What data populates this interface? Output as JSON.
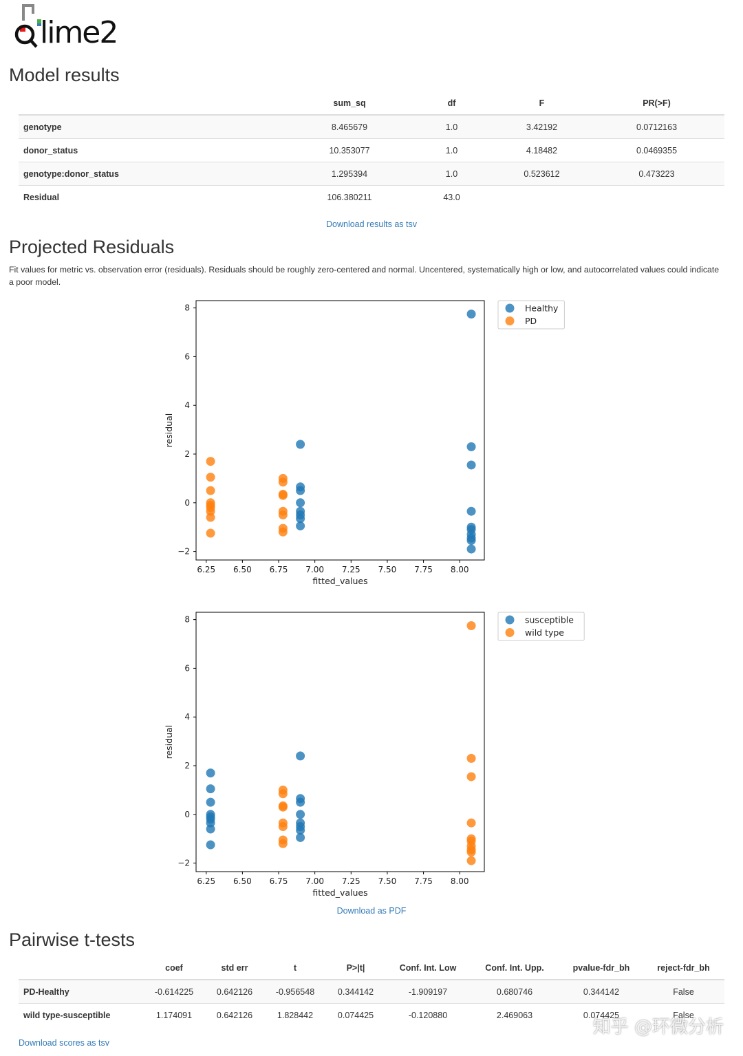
{
  "logo": {
    "text": "qiime2",
    "colors": [
      "#e41a1c",
      "#4daf4a",
      "#377eb8"
    ]
  },
  "model_results": {
    "title": "Model results",
    "columns": [
      "",
      "sum_sq",
      "df",
      "F",
      "PR(>F)"
    ],
    "rows": [
      {
        "label": "genotype",
        "cells": [
          "8.465679",
          "1.0",
          "3.42192",
          "0.0712163"
        ]
      },
      {
        "label": "donor_status",
        "cells": [
          "10.353077",
          "1.0",
          "4.18482",
          "0.0469355"
        ]
      },
      {
        "label": "genotype:donor_status",
        "cells": [
          "1.295394",
          "1.0",
          "0.523612",
          "0.473223"
        ]
      },
      {
        "label": "Residual",
        "cells": [
          "106.380211",
          "43.0",
          "",
          ""
        ]
      }
    ],
    "download_label": "Download results as tsv"
  },
  "projected_residuals": {
    "title": "Projected Residuals",
    "description": "Fit values for metric vs. observation error (residuals). Residuals should be roughly zero-centered and normal. Uncentered, systematically high or low, and autocorrelated values could indicate a poor model.",
    "download_label": "Download as PDF"
  },
  "chart_data": [
    {
      "type": "scatter",
      "xlabel": "fitted_values",
      "ylabel": "residual",
      "xlim": [
        6.18,
        8.17
      ],
      "ylim": [
        -2.35,
        8.3
      ],
      "xticks": [
        6.25,
        6.5,
        6.75,
        7.0,
        7.25,
        7.5,
        7.75,
        8.0
      ],
      "xtick_labels": [
        "6.25",
        "6.50",
        "6.75",
        "7.00",
        "7.25",
        "7.50",
        "7.75",
        "8.00"
      ],
      "yticks": [
        -2,
        0,
        2,
        4,
        6,
        8
      ],
      "ytick_labels": [
        "−2",
        "0",
        "2",
        "4",
        "6",
        "8"
      ],
      "legend_position": "outside-top-right",
      "series": [
        {
          "name": "Healthy",
          "color": "#1f77b4",
          "points": [
            [
              6.9,
              2.4
            ],
            [
              6.9,
              0.65
            ],
            [
              6.9,
              0.5
            ],
            [
              6.9,
              0.0
            ],
            [
              6.9,
              -0.35
            ],
            [
              6.9,
              -0.5
            ],
            [
              6.9,
              -0.65
            ],
            [
              6.9,
              -0.95
            ],
            [
              8.08,
              7.75
            ],
            [
              8.08,
              2.3
            ],
            [
              8.08,
              1.55
            ],
            [
              8.08,
              -0.35
            ],
            [
              8.08,
              -1.0
            ],
            [
              8.08,
              -1.1
            ],
            [
              8.08,
              -1.3
            ],
            [
              8.08,
              -1.45
            ],
            [
              8.08,
              -1.55
            ],
            [
              8.08,
              -1.9
            ]
          ]
        },
        {
          "name": "PD",
          "color": "#ff7f0e",
          "points": [
            [
              6.28,
              1.7
            ],
            [
              6.28,
              1.05
            ],
            [
              6.28,
              0.5
            ],
            [
              6.28,
              0.0
            ],
            [
              6.28,
              -0.1
            ],
            [
              6.28,
              -0.2
            ],
            [
              6.28,
              -0.35
            ],
            [
              6.28,
              -0.6
            ],
            [
              6.28,
              -1.25
            ],
            [
              6.78,
              1.0
            ],
            [
              6.78,
              0.85
            ],
            [
              6.78,
              0.35
            ],
            [
              6.78,
              0.3
            ],
            [
              6.78,
              -0.35
            ],
            [
              6.78,
              -0.5
            ],
            [
              6.78,
              -1.05
            ],
            [
              6.78,
              -1.2
            ]
          ]
        }
      ]
    },
    {
      "type": "scatter",
      "xlabel": "fitted_values",
      "ylabel": "residual",
      "xlim": [
        6.18,
        8.17
      ],
      "ylim": [
        -2.35,
        8.3
      ],
      "xticks": [
        6.25,
        6.5,
        6.75,
        7.0,
        7.25,
        7.5,
        7.75,
        8.0
      ],
      "xtick_labels": [
        "6.25",
        "6.50",
        "6.75",
        "7.00",
        "7.25",
        "7.50",
        "7.75",
        "8.00"
      ],
      "yticks": [
        -2,
        0,
        2,
        4,
        6,
        8
      ],
      "ytick_labels": [
        "−2",
        "0",
        "2",
        "4",
        "6",
        "8"
      ],
      "legend_position": "outside-top-right",
      "series": [
        {
          "name": "susceptible",
          "color": "#1f77b4",
          "points": [
            [
              6.28,
              1.7
            ],
            [
              6.28,
              1.05
            ],
            [
              6.28,
              0.5
            ],
            [
              6.28,
              0.0
            ],
            [
              6.28,
              -0.1
            ],
            [
              6.28,
              -0.2
            ],
            [
              6.28,
              -0.35
            ],
            [
              6.28,
              -0.6
            ],
            [
              6.28,
              -1.25
            ],
            [
              6.9,
              2.4
            ],
            [
              6.9,
              0.65
            ],
            [
              6.9,
              0.5
            ],
            [
              6.9,
              0.0
            ],
            [
              6.9,
              -0.35
            ],
            [
              6.9,
              -0.5
            ],
            [
              6.9,
              -0.65
            ],
            [
              6.9,
              -0.95
            ]
          ]
        },
        {
          "name": "wild type",
          "color": "#ff7f0e",
          "points": [
            [
              6.78,
              1.0
            ],
            [
              6.78,
              0.85
            ],
            [
              6.78,
              0.35
            ],
            [
              6.78,
              0.3
            ],
            [
              6.78,
              -0.35
            ],
            [
              6.78,
              -0.5
            ],
            [
              6.78,
              -1.05
            ],
            [
              6.78,
              -1.2
            ],
            [
              8.08,
              7.75
            ],
            [
              8.08,
              2.3
            ],
            [
              8.08,
              1.55
            ],
            [
              8.08,
              -0.35
            ],
            [
              8.08,
              -1.0
            ],
            [
              8.08,
              -1.1
            ],
            [
              8.08,
              -1.3
            ],
            [
              8.08,
              -1.45
            ],
            [
              8.08,
              -1.55
            ],
            [
              8.08,
              -1.9
            ]
          ]
        }
      ]
    }
  ],
  "pairwise": {
    "title": "Pairwise t-tests",
    "columns": [
      "",
      "coef",
      "std err",
      "t",
      "P>|t|",
      "Conf. Int. Low",
      "Conf. Int. Upp.",
      "pvalue-fdr_bh",
      "reject-fdr_bh"
    ],
    "rows": [
      {
        "label": "PD-Healthy",
        "cells": [
          "-0.614225",
          "0.642126",
          "-0.956548",
          "0.344142",
          "-1.909197",
          "0.680746",
          "0.344142",
          "False"
        ]
      },
      {
        "label": "wild type-susceptible",
        "cells": [
          "1.174091",
          "0.642126",
          "1.828442",
          "0.074425",
          "-0.120880",
          "2.469063",
          "0.074425",
          "False"
        ]
      }
    ],
    "download_label": "Download scores as tsv"
  },
  "watermark": "知乎 @环微分析"
}
